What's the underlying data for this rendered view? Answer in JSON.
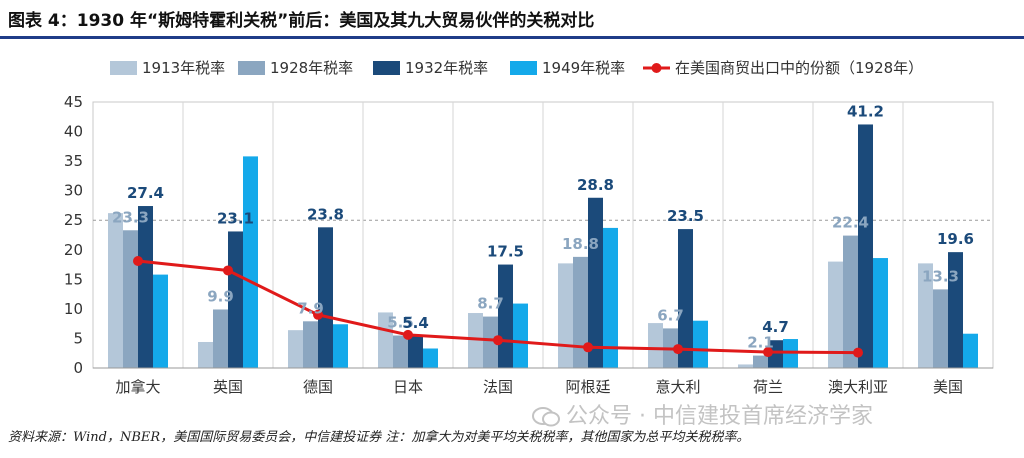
{
  "title": "图表 4：1930 年“斯姆特霍利关税”前后：美国及其九大贸易伙伴的关税对比",
  "source_note": "资料来源：Wind，NBER，美国国际贸易委员会，中信建投证券  注：加拿大为对美平均关税税率，其他国家为总平均关税税率。",
  "watermark": "公众号 · 中信建投首席经济学家",
  "chart_data": {
    "type": "bar",
    "title": "",
    "xlabel": "",
    "ylabel": "",
    "ylim": [
      0,
      45
    ],
    "yticks": [
      0,
      5,
      10,
      15,
      20,
      25,
      30,
      35,
      40,
      45
    ],
    "grid": "vertical category separators, dashed line at 25",
    "legend_position": "top",
    "categories": [
      "加拿大",
      "英国",
      "德国",
      "日本",
      "法国",
      "阿根廷",
      "意大利",
      "荷兰",
      "澳大利亚",
      "美国"
    ],
    "series": [
      {
        "name": "1913年税率",
        "kind": "bar",
        "color": "#b4c7d9",
        "values": [
          26.2,
          4.4,
          6.4,
          9.4,
          9.3,
          17.7,
          7.6,
          0.6,
          18.0,
          17.7
        ]
      },
      {
        "name": "1928年税率",
        "kind": "bar",
        "color": "#8ba6c0",
        "values": [
          23.3,
          9.9,
          7.9,
          5.5,
          8.7,
          18.8,
          6.7,
          2.1,
          22.4,
          13.3
        ]
      },
      {
        "name": "1932年税率",
        "kind": "bar",
        "color": "#1b4a7a",
        "values": [
          27.4,
          23.1,
          23.8,
          5.4,
          17.5,
          28.8,
          23.5,
          4.7,
          41.2,
          19.6
        ]
      },
      {
        "name": "1949年税率",
        "kind": "bar",
        "color": "#14a9ea",
        "values": [
          15.8,
          35.8,
          7.4,
          3.3,
          10.9,
          23.7,
          8.0,
          4.9,
          18.6,
          5.8
        ]
      },
      {
        "name": "在美国商贸出口中的份额（1928年）",
        "kind": "line",
        "color": "#e01a1a",
        "values": [
          18.1,
          16.5,
          9.0,
          5.6,
          4.7,
          3.5,
          3.2,
          2.7,
          2.6,
          null
        ]
      }
    ],
    "data_labels": [
      {
        "category": "加拿大",
        "series": "1928年税率",
        "text": "23.3",
        "color": "#8ba6c0"
      },
      {
        "category": "加拿大",
        "series": "1932年税率",
        "text": "27.4",
        "color": "#1b4a7a"
      },
      {
        "category": "英国",
        "series": "1928年税率",
        "text": "9.9",
        "color": "#8ba6c0"
      },
      {
        "category": "英国",
        "series": "1932年税率",
        "text": "23.1",
        "color": "#1b4a7a"
      },
      {
        "category": "德国",
        "series": "1928年税率",
        "text": "7.9",
        "color": "#8ba6c0"
      },
      {
        "category": "德国",
        "series": "1932年税率",
        "text": "23.8",
        "color": "#1b4a7a"
      },
      {
        "category": "日本",
        "series": "1928年税率",
        "text": "5.5",
        "color": "#8ba6c0"
      },
      {
        "category": "日本",
        "series": "1932年税率",
        "text": "5.4",
        "color": "#1b4a7a"
      },
      {
        "category": "法国",
        "series": "1928年税率",
        "text": "8.7",
        "color": "#8ba6c0"
      },
      {
        "category": "法国",
        "series": "1932年税率",
        "text": "17.5",
        "color": "#1b4a7a"
      },
      {
        "category": "阿根廷",
        "series": "1928年税率",
        "text": "18.8",
        "color": "#8ba6c0"
      },
      {
        "category": "阿根廷",
        "series": "1932年税率",
        "text": "28.8",
        "color": "#1b4a7a"
      },
      {
        "category": "意大利",
        "series": "1928年税率",
        "text": "6.7",
        "color": "#8ba6c0"
      },
      {
        "category": "意大利",
        "series": "1932年税率",
        "text": "23.5",
        "color": "#1b4a7a"
      },
      {
        "category": "荷兰",
        "series": "1928年税率",
        "text": "2.1",
        "color": "#8ba6c0"
      },
      {
        "category": "荷兰",
        "series": "1932年税率",
        "text": "4.7",
        "color": "#1b4a7a"
      },
      {
        "category": "澳大利亚",
        "series": "1928年税率",
        "text": "22.4",
        "color": "#8ba6c0"
      },
      {
        "category": "澳大利亚",
        "series": "1932年税率",
        "text": "41.2",
        "color": "#1b4a7a"
      },
      {
        "category": "美国",
        "series": "1928年税率",
        "text": "13.3",
        "color": "#8ba6c0"
      },
      {
        "category": "美国",
        "series": "1932年税率",
        "text": "19.6",
        "color": "#1b4a7a"
      }
    ]
  }
}
